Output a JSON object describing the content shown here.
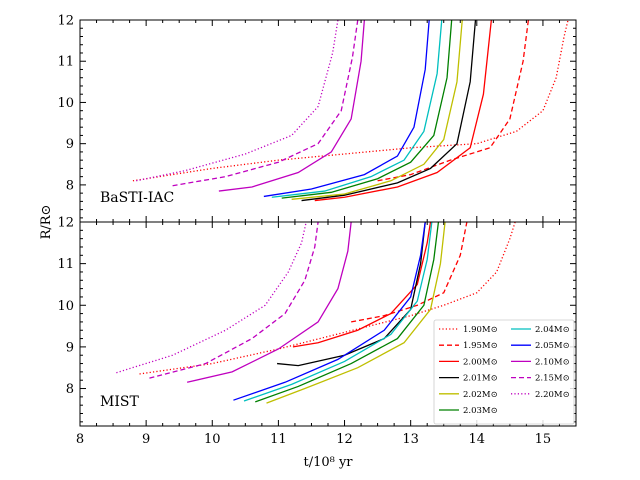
{
  "chart_data": {
    "type": "line",
    "xlabel": "t/10^8 yr",
    "ylabel": "R/R_sun",
    "xlim": [
      8,
      15.5
    ],
    "ylim": [
      7.1,
      12
    ],
    "x_ticks": [
      8,
      9,
      10,
      11,
      12,
      13,
      14,
      15
    ],
    "y_ticks": [
      8,
      9,
      10,
      11,
      12
    ],
    "panels": [
      {
        "label": "BaSTI-IAC",
        "series": [
          {
            "name": "1.90M⊙",
            "color": "#ff0000",
            "style": "dotted",
            "x": [
              8.8,
              9.2,
              10,
              11,
              12,
              13,
              14,
              14.6,
              15.0,
              15.2,
              15.32,
              15.38
            ],
            "y": [
              8.1,
              8.2,
              8.4,
              8.6,
              8.75,
              8.9,
              9.0,
              9.3,
              9.8,
              10.6,
              11.6,
              12.0
            ]
          },
          {
            "name": "1.95M⊙",
            "color": "#ff0000",
            "style": "dashed",
            "x": [
              12.5,
              13,
              13.6,
              14.2,
              14.5,
              14.7,
              14.78
            ],
            "y": [
              8.1,
              8.25,
              8.6,
              8.9,
              9.6,
              11.0,
              12.0
            ]
          },
          {
            "name": "2.00M⊙",
            "color": "#ff0000",
            "style": "solid",
            "x": [
              11.55,
              12.0,
              12.8,
              13.4,
              13.9,
              14.1,
              14.22
            ],
            "y": [
              7.62,
              7.7,
              7.95,
              8.3,
              8.9,
              10.2,
              12.0
            ]
          },
          {
            "name": "2.01M⊙",
            "color": "#000000",
            "style": "solid",
            "x": [
              11.35,
              12.0,
              12.8,
              13.3,
              13.7,
              13.9,
              13.98
            ],
            "y": [
              7.62,
              7.75,
              8.05,
              8.4,
              9.0,
              10.5,
              12.0
            ]
          },
          {
            "name": "2.02M⊙",
            "color": "#bfbf00",
            "style": "solid",
            "x": [
              11.2,
              12.0,
              12.7,
              13.2,
              13.5,
              13.7,
              13.78
            ],
            "y": [
              7.65,
              7.78,
              8.1,
              8.5,
              9.1,
              10.5,
              12.0
            ]
          },
          {
            "name": "2.03M⊙",
            "color": "#008000",
            "style": "solid",
            "x": [
              11.05,
              11.8,
              12.5,
              13.0,
              13.35,
              13.55,
              13.62
            ],
            "y": [
              7.68,
              7.82,
              8.15,
              8.55,
              9.2,
              10.6,
              12.0
            ]
          },
          {
            "name": "2.04M⊙",
            "color": "#00bfbf",
            "style": "solid",
            "x": [
              10.9,
              11.7,
              12.4,
              12.9,
              13.2,
              13.4,
              13.47
            ],
            "y": [
              7.7,
              7.85,
              8.2,
              8.6,
              9.3,
              10.7,
              12.0
            ]
          },
          {
            "name": "2.05M⊙",
            "color": "#0000ff",
            "style": "solid",
            "x": [
              10.78,
              11.5,
              12.3,
              12.8,
              13.05,
              13.22,
              13.28
            ],
            "y": [
              7.72,
              7.9,
              8.25,
              8.7,
              9.4,
              10.8,
              12.0
            ]
          },
          {
            "name": "2.10M⊙",
            "color": "#bf00bf",
            "style": "solid",
            "x": [
              10.1,
              10.6,
              11.3,
              11.8,
              12.1,
              12.25,
              12.3
            ],
            "y": [
              7.85,
              7.95,
              8.3,
              8.8,
              9.6,
              11.0,
              12.0
            ]
          },
          {
            "name": "2.15M⊙",
            "color": "#bf00bf",
            "style": "dashed",
            "x": [
              9.4,
              10.2,
              11.0,
              11.6,
              11.95,
              12.12,
              12.2
            ],
            "y": [
              7.98,
              8.2,
              8.55,
              9.0,
              9.8,
              11.1,
              12.0
            ]
          },
          {
            "name": "2.20M⊙",
            "color": "#bf00bf",
            "style": "dotted",
            "x": [
              8.85,
              9.6,
              10.5,
              11.2,
              11.6,
              11.82,
              11.9
            ],
            "y": [
              8.1,
              8.35,
              8.75,
              9.2,
              9.9,
              11.2,
              12.0
            ]
          }
        ]
      },
      {
        "label": "MIST",
        "series": [
          {
            "name": "1.90M⊙",
            "color": "#ff0000",
            "style": "dotted",
            "x": [
              8.9,
              10,
              11,
              12,
              13,
              13.5,
              14,
              14.3,
              14.5,
              14.58
            ],
            "y": [
              8.35,
              8.6,
              8.95,
              9.35,
              9.75,
              10.0,
              10.3,
              10.8,
              11.6,
              12.0
            ]
          },
          {
            "name": "1.95M⊙",
            "color": "#ff0000",
            "style": "dashed",
            "x": [
              12.1,
              12.6,
              13.1,
              13.5,
              13.75,
              13.85
            ],
            "y": [
              9.6,
              9.75,
              10.0,
              10.3,
              11.2,
              12.0
            ]
          },
          {
            "name": "2.00M⊙",
            "color": "#ff0000",
            "style": "solid",
            "x": [
              11.22,
              11.6,
              12.2,
              12.7,
              13.1,
              13.25,
              13.3
            ],
            "y": [
              9.0,
              9.1,
              9.4,
              9.8,
              10.5,
              11.5,
              12.0
            ]
          },
          {
            "name": "2.01M⊙",
            "color": "#000000",
            "style": "solid",
            "x": [
              10.98,
              11.3,
              12.0,
              12.6,
              13.0,
              13.15,
              13.22
            ],
            "y": [
              8.6,
              8.55,
              8.8,
              9.2,
              9.9,
              11.0,
              12.0
            ]
          },
          {
            "name": "2.02M⊙",
            "color": "#bfbf00",
            "style": "solid",
            "x": [
              10.82,
              11.4,
              12.2,
              12.9,
              13.3,
              13.45,
              13.52
            ],
            "y": [
              7.65,
              8.0,
              8.5,
              9.1,
              9.9,
              11.0,
              12.0
            ]
          },
          {
            "name": "2.03M⊙",
            "color": "#008000",
            "style": "solid",
            "x": [
              10.65,
              11.3,
              12.1,
              12.8,
              13.2,
              13.35,
              13.42
            ],
            "y": [
              7.68,
              8.05,
              8.6,
              9.2,
              10.0,
              11.1,
              12.0
            ]
          },
          {
            "name": "2.04M⊙",
            "color": "#00bfbf",
            "style": "solid",
            "x": [
              10.48,
              11.2,
              12.0,
              12.7,
              13.1,
              13.25,
              13.32
            ],
            "y": [
              7.7,
              8.1,
              8.65,
              9.3,
              10.1,
              11.1,
              12.0
            ]
          },
          {
            "name": "2.05M⊙",
            "color": "#0000ff",
            "style": "solid",
            "x": [
              10.32,
              11.1,
              11.9,
              12.6,
              13.0,
              13.15,
              13.22
            ],
            "y": [
              7.72,
              8.15,
              8.7,
              9.4,
              10.2,
              11.2,
              12.0
            ]
          },
          {
            "name": "2.10M⊙",
            "color": "#bf00bf",
            "style": "solid",
            "x": [
              9.62,
              10.3,
              11.0,
              11.6,
              11.9,
              12.05,
              12.1
            ],
            "y": [
              8.15,
              8.4,
              8.95,
              9.6,
              10.4,
              11.3,
              12.0
            ]
          },
          {
            "name": "2.15M⊙",
            "color": "#bf00bf",
            "style": "dashed",
            "x": [
              9.05,
              9.9,
              10.6,
              11.1,
              11.4,
              11.55,
              11.6
            ],
            "y": [
              8.25,
              8.6,
              9.2,
              9.8,
              10.6,
              11.4,
              12.0
            ]
          },
          {
            "name": "2.20M⊙",
            "color": "#bf00bf",
            "style": "dotted",
            "x": [
              8.55,
              9.4,
              10.2,
              10.8,
              11.15,
              11.35,
              11.42
            ],
            "y": [
              8.38,
              8.8,
              9.4,
              10.0,
              10.8,
              11.5,
              12.0
            ]
          }
        ]
      }
    ],
    "legend": {
      "placement": "lower-right of MIST panel",
      "entries": [
        "1.90M⊙",
        "1.95M⊙",
        "2.00M⊙",
        "2.01M⊙",
        "2.02M⊙",
        "2.03M⊙",
        "2.04M⊙",
        "2.05M⊙",
        "2.10M⊙",
        "2.15M⊙",
        "2.20M⊙"
      ]
    },
    "xlabel_display": "t/10⁸ yr",
    "ylabel_display": "R/R⊙"
  }
}
